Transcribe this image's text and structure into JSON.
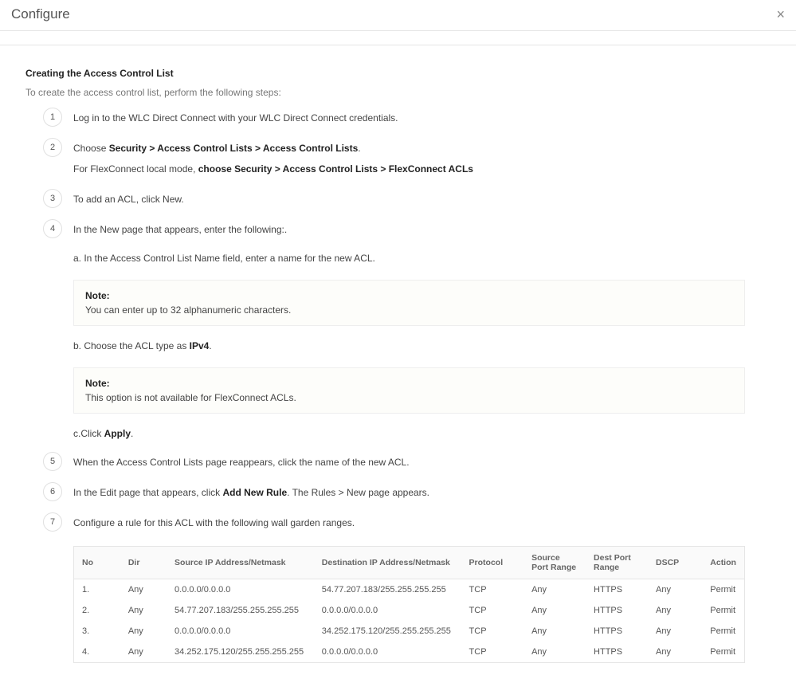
{
  "header": {
    "title": "Configure"
  },
  "section": {
    "title": "Creating the Access Control List",
    "intro": "To create the access control list, perform the following steps:"
  },
  "steps": {
    "s1": {
      "num": "1",
      "text_a": "Log in to the WLC Direct Connect with your WLC Direct Connect credentials."
    },
    "s2": {
      "num": "2",
      "prefix": "Choose ",
      "bold": "Security > Access Control Lists > Access Control Lists",
      "suffix": ".",
      "line2_a": "For FlexConnect local mode, ",
      "line2_b": "choose Security > Access Control Lists > FlexConnect ACLs"
    },
    "s3": {
      "num": "3",
      "text": "To add an ACL, click New."
    },
    "s4": {
      "num": "4",
      "text": "In the New page that appears, enter the following:.",
      "sub_a": "a. In the Access Control List Name field, enter a name for the new ACL.",
      "note1_label": "Note:",
      "note1_text": "You can enter up to 32 alphanumeric characters.",
      "sub_b_a": "b. Choose the ACL type as ",
      "sub_b_b": "IPv4",
      "sub_b_c": ".",
      "note2_label": "Note:",
      "note2_text": "This option is not available for FlexConnect ACLs.",
      "sub_c_a": "c.Click ",
      "sub_c_b": "Apply",
      "sub_c_c": "."
    },
    "s5": {
      "num": "5",
      "text": "When the Access Control Lists page reappears, click the name of the new ACL."
    },
    "s6": {
      "num": "6",
      "a": "In the Edit page that appears, click ",
      "b": "Add New Rule",
      "c": ". The Rules > New page appears."
    },
    "s7": {
      "num": "7",
      "text": "Configure a rule for this ACL with the following wall garden ranges."
    }
  },
  "table": {
    "headers": [
      "No",
      "Dir",
      "Source IP Address/Netmask",
      "Destination IP Address/Netmask",
      "Protocol",
      "Source Port Range",
      "Dest Port Range",
      "DSCP",
      "Action"
    ],
    "rows": [
      [
        "1.",
        "Any",
        "0.0.0.0/0.0.0.0",
        "54.77.207.183/255.255.255.255",
        "TCP",
        "Any",
        "HTTPS",
        "Any",
        "Permit"
      ],
      [
        "2.",
        "Any",
        "54.77.207.183/255.255.255.255",
        "0.0.0.0/0.0.0.0",
        "TCP",
        "Any",
        "HTTPS",
        "Any",
        "Permit"
      ],
      [
        "3.",
        "Any",
        "0.0.0.0/0.0.0.0",
        "34.252.175.120/255.255.255.255",
        "TCP",
        "Any",
        "HTTPS",
        "Any",
        "Permit"
      ],
      [
        "4.",
        "Any",
        "34.252.175.120/255.255.255.255",
        "0.0.0.0/0.0.0.0",
        "TCP",
        "Any",
        "HTTPS",
        "Any",
        "Permit"
      ]
    ],
    "col_widths": [
      "60px",
      "60px",
      "185px",
      "185px",
      "80px",
      "80px",
      "80px",
      "70px",
      "50px"
    ]
  }
}
